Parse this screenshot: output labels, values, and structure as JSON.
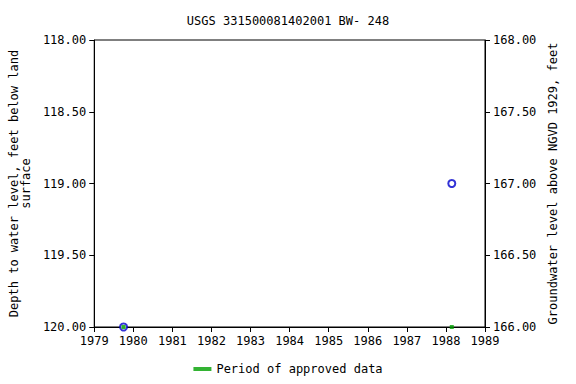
{
  "chart_data": {
    "type": "scatter",
    "title": "USGS 331500081402001 BW- 248",
    "x_label": "",
    "y_label": "Depth to water level, feet below land\nsurface",
    "y2_label": "Groundwater level above NGVD 1929, feet",
    "x": [
      1979.75,
      1988.15
    ],
    "xlim": [
      1979,
      1989
    ],
    "xticks": [
      1979,
      1980,
      1981,
      1982,
      1983,
      1984,
      1985,
      1986,
      1987,
      1988,
      1989
    ],
    "ylim": [
      120,
      118
    ],
    "yticks": [
      {
        "value": 118,
        "label": "118.00"
      },
      {
        "value": 118.5,
        "label": "118.50"
      },
      {
        "value": 119,
        "label": "119.00"
      },
      {
        "value": 119.5,
        "label": "119.50"
      },
      {
        "value": 120,
        "label": "120.00"
      }
    ],
    "y2lim": [
      166,
      168
    ],
    "y2ticks": [
      {
        "value": 166,
        "label": "166.00"
      },
      {
        "value": 166.5,
        "label": "166.50"
      },
      {
        "value": 167,
        "label": "167.00"
      },
      {
        "value": 167.5,
        "label": "167.50"
      },
      {
        "value": 168,
        "label": "168.00"
      }
    ],
    "series": [
      {
        "color": "#0000cc",
        "marker": "circle",
        "values": [
          120.0,
          119.0
        ]
      },
      {
        "name": "Period of approved data",
        "color": "#00a000",
        "marker": "square",
        "values": [
          120.0,
          120.0
        ]
      }
    ],
    "grid": false,
    "legend": "bottom"
  }
}
